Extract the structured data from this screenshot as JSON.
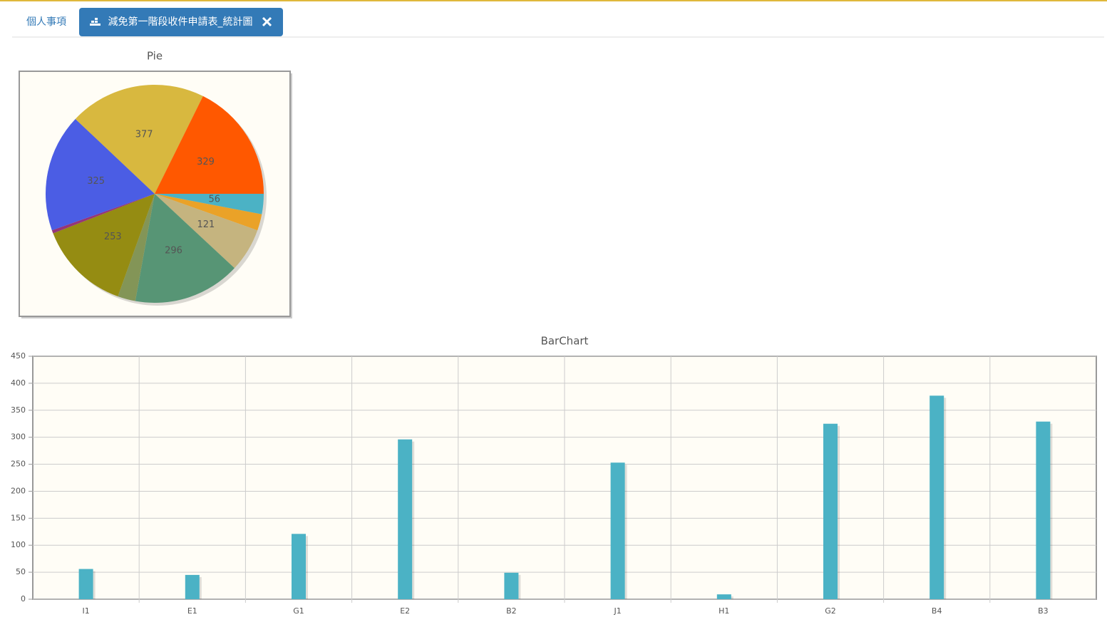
{
  "tabs": [
    "個人事項",
    "減免第一階段收件申請表_統計圖"
  ],
  "chart_data": [
    {
      "type": "pie",
      "title": "Pie",
      "values": [
        56,
        45,
        121,
        296,
        49,
        253,
        9,
        325,
        377,
        329
      ],
      "colors": [
        "#4bb2c5",
        "#eaa228",
        "#c5b47f",
        "#579575",
        "#839557",
        "#958c12",
        "#953579",
        "#4b5de4",
        "#d8b83f",
        "#ff5800"
      ]
    },
    {
      "type": "bar",
      "title": "BarChart",
      "categories": [
        "I1",
        "E1",
        "G1",
        "E2",
        "B2",
        "J1",
        "H1",
        "G2",
        "B4",
        "B3"
      ],
      "values": [
        56,
        45,
        121,
        296,
        49,
        253,
        9,
        325,
        377,
        329
      ],
      "color": "#4bb2c5",
      "ylim": [
        0,
        450
      ],
      "yticks": [
        0,
        50,
        100,
        150,
        200,
        250,
        300,
        350,
        400,
        450
      ],
      "grid": true
    }
  ]
}
